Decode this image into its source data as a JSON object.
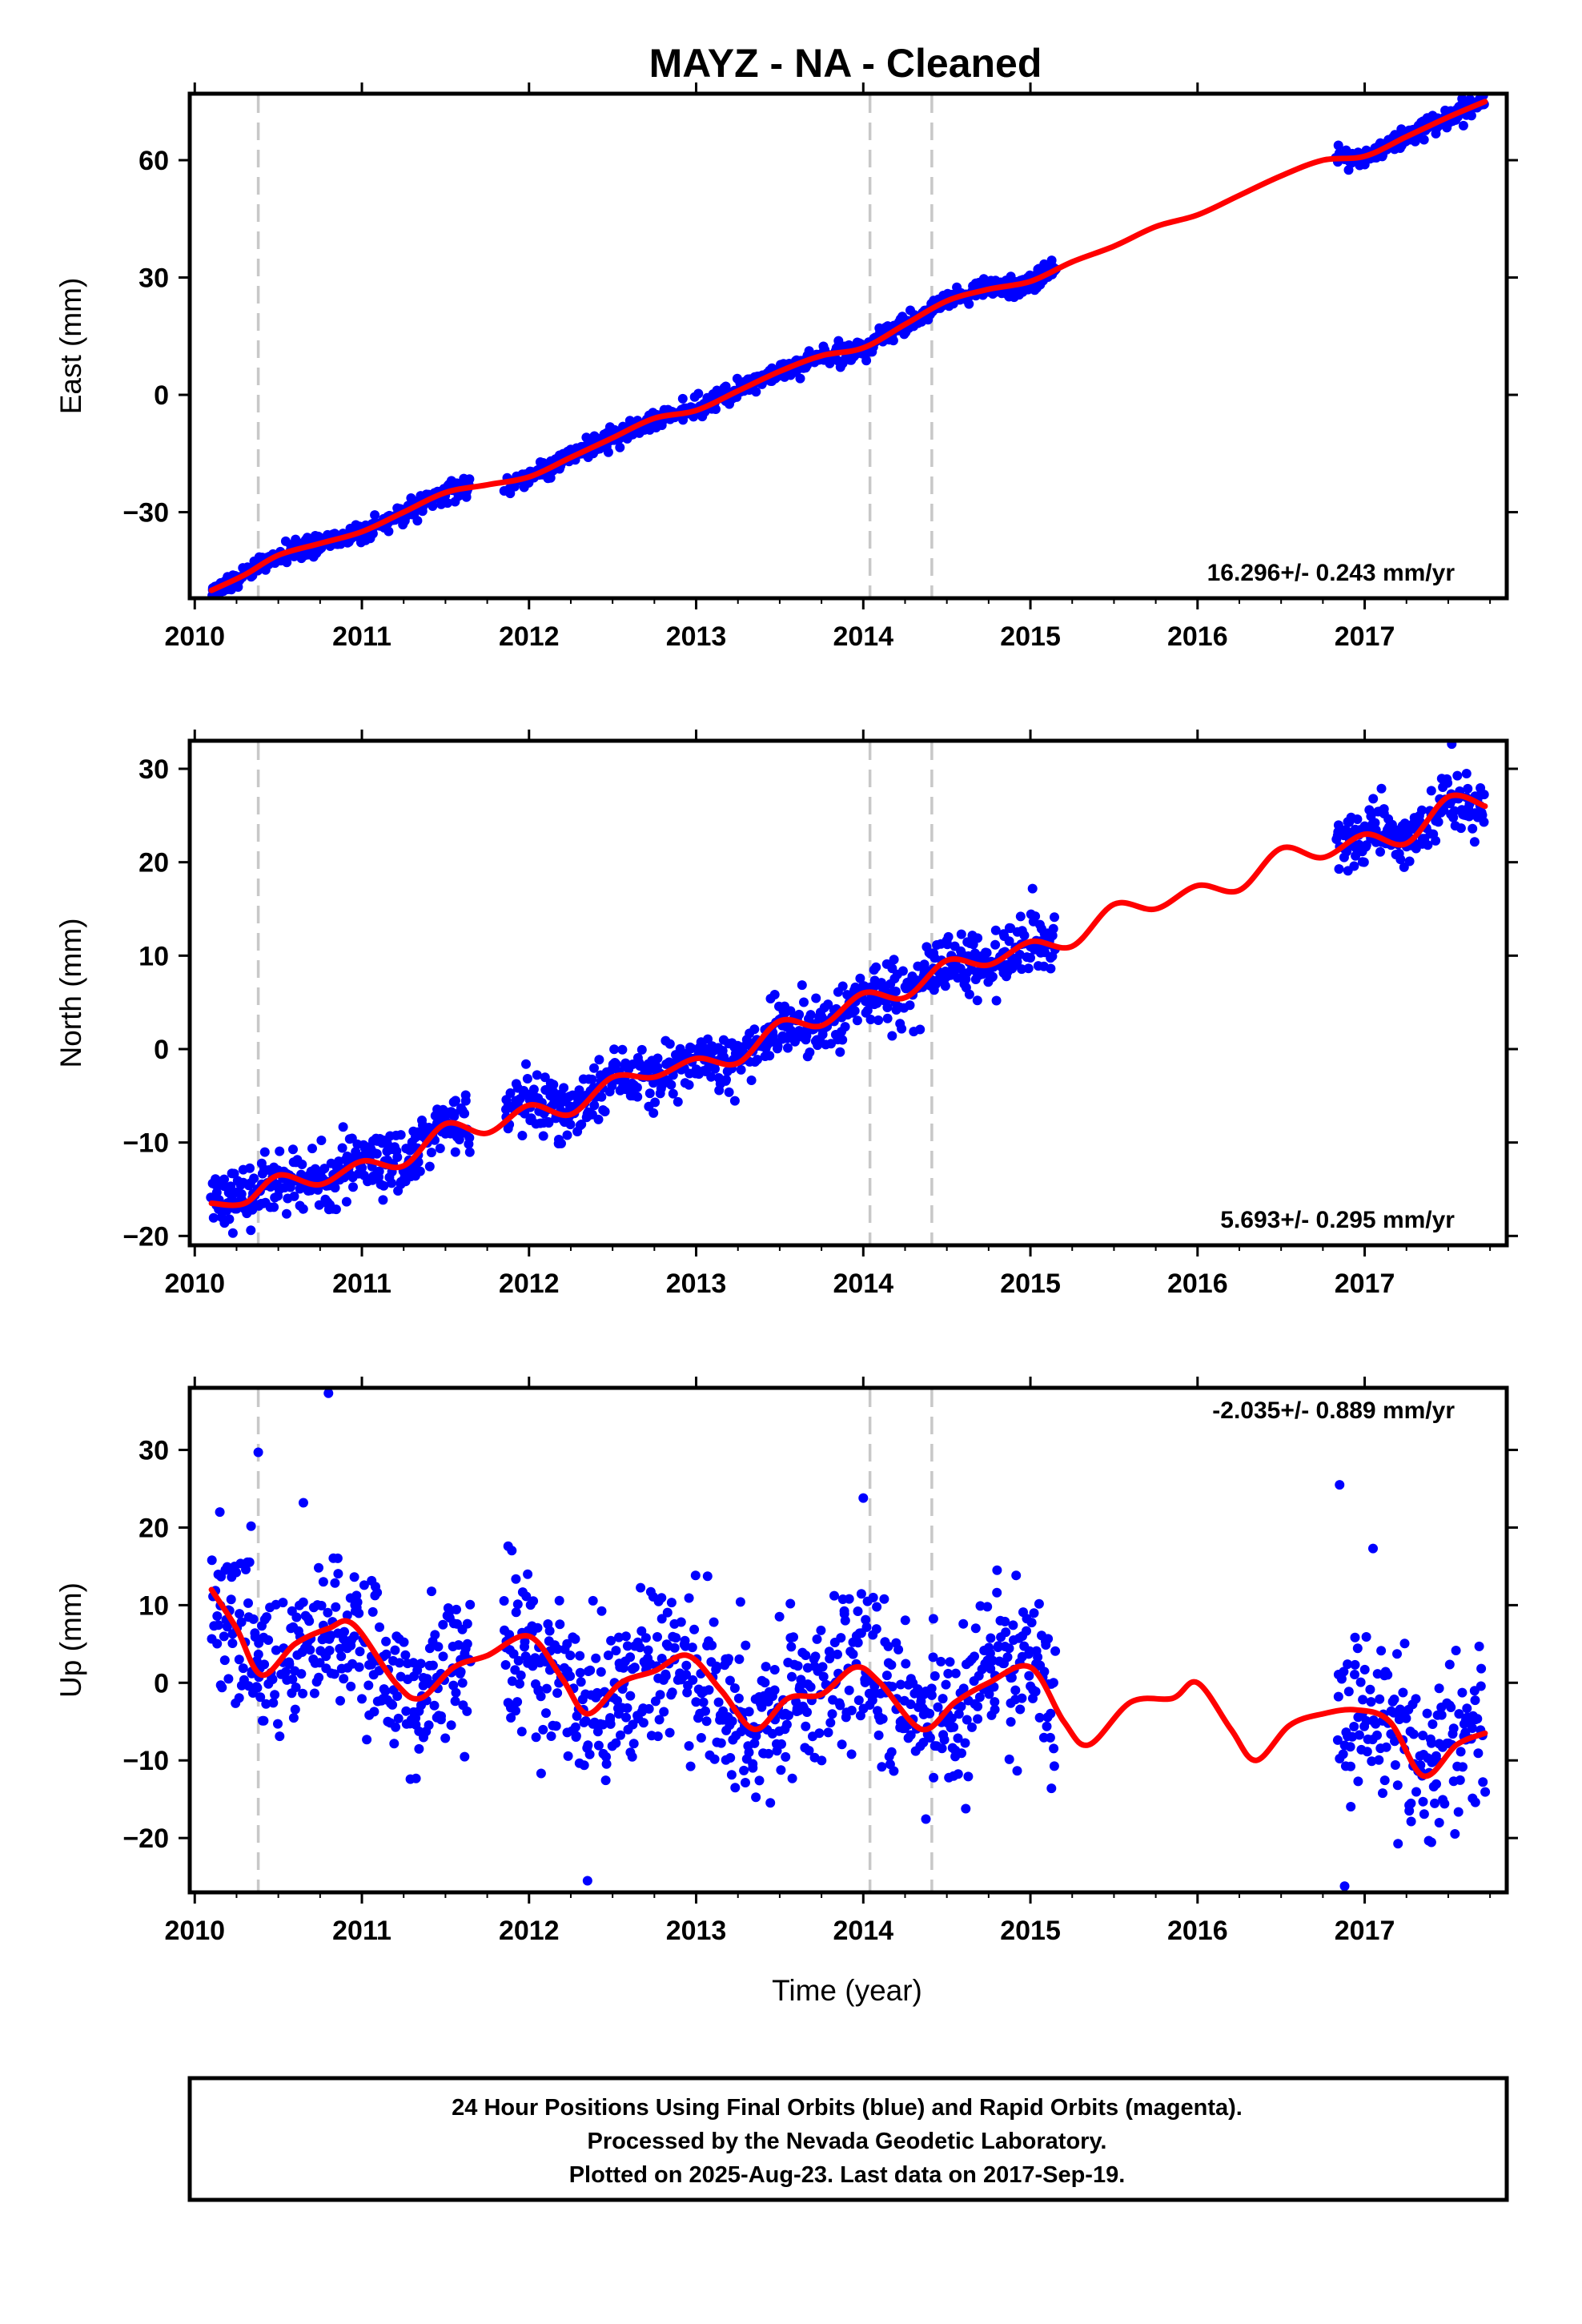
{
  "title": "MAYZ  - NA - Cleaned",
  "x_axis_label": "Time (year)",
  "footer_lines": [
    "24 Hour Positions Using Final Orbits (blue) and Rapid Orbits (magenta).",
    "Processed by the Nevada Geodetic Laboratory.",
    "Plotted on 2025-Aug-23. Last data on 2017-Sep-19."
  ],
  "colors": {
    "points": "#0000ff",
    "fit": "#ff0000",
    "events": "#c8c8c8",
    "frame": "#000000"
  },
  "chart_data": [
    {
      "type": "scatter",
      "panel": "east",
      "ylabel": "East (mm)",
      "rate_label": "16.296+/- 0.243 mm/yr",
      "rate_position": "bottom-right",
      "xlim": [
        2009.97,
        2017.85
      ],
      "ylim": [
        -52,
        77
      ],
      "x_ticks": [
        2010,
        2011,
        2012,
        2013,
        2014,
        2015,
        2016,
        2017
      ],
      "x_tick_labels": [
        "2010",
        "2011",
        "2012",
        "2013",
        "2014",
        "2015",
        "2016",
        "2017"
      ],
      "y_ticks": [
        -30,
        0,
        30,
        60
      ],
      "y_tick_labels": [
        "−30",
        "0",
        "30",
        "60"
      ],
      "event_lines_x": [
        2010.38,
        2014.04,
        2014.41
      ],
      "data_segments": [
        [
          2010.1,
          2011.65
        ],
        [
          2011.85,
          2015.15
        ],
        [
          2016.83,
          2017.72
        ]
      ],
      "trend": {
        "rate": 16.3,
        "intercept": -50.5,
        "t0": 2010.1
      },
      "seasonal": {
        "amplitude": 2.2,
        "phase": 0.0
      },
      "scatter_sigma": 1.3,
      "gaps_sigma": 0.0,
      "fit_series": {
        "name": "",
        "x": [
          2010.1,
          2010.3,
          2010.5,
          2010.75,
          2011.0,
          2011.25,
          2011.5,
          2011.75,
          2012.0,
          2012.25,
          2012.5,
          2012.75,
          2013.0,
          2013.25,
          2013.5,
          2013.75,
          2014.0,
          2014.25,
          2014.5,
          2014.75,
          2015.0,
          2015.25,
          2015.5,
          2015.75,
          2016.0,
          2016.25,
          2016.5,
          2016.75,
          2017.0,
          2017.25,
          2017.5,
          2017.72
        ],
        "y": [
          -50,
          -46,
          -41,
          -38,
          -35,
          -30,
          -25,
          -23,
          -21,
          -16,
          -11,
          -6,
          -4,
          1,
          6,
          10,
          12,
          18,
          24,
          27,
          29,
          34,
          38,
          43,
          46,
          51,
          56,
          60,
          61,
          66,
          71,
          75
        ]
      }
    },
    {
      "type": "scatter",
      "panel": "north",
      "ylabel": "North (mm)",
      "rate_label": "5.693+/- 0.295 mm/yr",
      "rate_position": "bottom-right",
      "xlim": [
        2009.97,
        2017.85
      ],
      "ylim": [
        -21,
        33
      ],
      "x_ticks": [
        2010,
        2011,
        2012,
        2013,
        2014,
        2015,
        2016,
        2017
      ],
      "x_tick_labels": [
        "2010",
        "2011",
        "2012",
        "2013",
        "2014",
        "2015",
        "2016",
        "2017"
      ],
      "y_ticks": [
        -20,
        -10,
        0,
        10,
        20,
        30
      ],
      "y_tick_labels": [
        "−20",
        "−10",
        "0",
        "10",
        "20",
        "30"
      ],
      "event_lines_x": [
        2010.38,
        2014.04,
        2014.41
      ],
      "data_segments": [
        [
          2010.1,
          2011.65
        ],
        [
          2011.85,
          2015.15
        ],
        [
          2016.83,
          2017.72
        ]
      ],
      "trend": {
        "rate": 5.7,
        "intercept": -17.0,
        "t0": 2010.1
      },
      "seasonal": {
        "amplitude": 1.4,
        "phase": 1.2
      },
      "scatter_sigma": 1.6,
      "fit_series": {
        "name": "",
        "x": [
          2010.1,
          2010.3,
          2010.5,
          2010.75,
          2011.0,
          2011.25,
          2011.5,
          2011.75,
          2012.0,
          2012.25,
          2012.5,
          2012.75,
          2013.0,
          2013.25,
          2013.5,
          2013.75,
          2014.0,
          2014.25,
          2014.5,
          2014.75,
          2015.0,
          2015.25,
          2015.5,
          2015.75,
          2016.0,
          2016.25,
          2016.5,
          2016.75,
          2017.0,
          2017.25,
          2017.5,
          2017.72
        ],
        "y": [
          -16.5,
          -16.5,
          -13.5,
          -14.5,
          -12,
          -12.5,
          -8,
          -9,
          -6,
          -7,
          -3,
          -3,
          -1,
          -1.5,
          3,
          2.5,
          6,
          5.5,
          9.5,
          9,
          11.5,
          11,
          15.5,
          15,
          17.5,
          17,
          21.5,
          20.5,
          23,
          22,
          27,
          26
        ]
      }
    },
    {
      "type": "scatter",
      "panel": "up",
      "ylabel": "Up (mm)",
      "rate_label": "-2.035+/- 0.889 mm/yr",
      "rate_position": "top-right",
      "xlim": [
        2009.97,
        2017.85
      ],
      "ylim": [
        -27,
        38
      ],
      "x_ticks": [
        2010,
        2011,
        2012,
        2013,
        2014,
        2015,
        2016,
        2017
      ],
      "x_tick_labels": [
        "2010",
        "2011",
        "2012",
        "2013",
        "2014",
        "2015",
        "2016",
        "2017"
      ],
      "y_ticks": [
        -20,
        -10,
        0,
        10,
        20,
        30
      ],
      "y_tick_labels": [
        "−20",
        "−10",
        "0",
        "10",
        "20",
        "30"
      ],
      "event_lines_x": [
        2010.38,
        2014.04,
        2014.41
      ],
      "data_segments": [
        [
          2010.1,
          2011.65
        ],
        [
          2011.85,
          2015.15
        ],
        [
          2016.83,
          2017.72
        ]
      ],
      "trend": {
        "rate": -2.0,
        "intercept": 4.0,
        "t0": 2010.1
      },
      "seasonal": {
        "amplitude": 4.5,
        "phase": -1.0
      },
      "scatter_sigma": 5.0,
      "outliers": [
        [
          2010.15,
          22
        ],
        [
          2010.38,
          29.7
        ],
        [
          2010.65,
          23.2
        ],
        [
          2010.8,
          37.3
        ],
        [
          2012.35,
          -25.5
        ],
        [
          2014.0,
          23.8
        ],
        [
          2016.85,
          25.5
        ],
        [
          2016.88,
          -26.2
        ],
        [
          2017.05,
          17.3
        ]
      ],
      "fit_series": {
        "name": "",
        "x": [
          2010.1,
          2010.25,
          2010.4,
          2010.6,
          2010.8,
          2010.95,
          2011.2,
          2011.35,
          2011.55,
          2011.75,
          2012.0,
          2012.2,
          2012.35,
          2012.55,
          2012.75,
          2012.95,
          2013.15,
          2013.35,
          2013.55,
          2013.75,
          2013.95,
          2014.1,
          2014.35,
          2014.55,
          2014.75,
          2015.0,
          2015.2,
          2015.35,
          2015.6,
          2015.85,
          2016.0,
          2016.2,
          2016.35,
          2016.55,
          2016.75,
          2016.95,
          2017.15,
          2017.35,
          2017.55,
          2017.72
        ],
        "y": [
          12,
          7,
          1,
          5,
          7,
          7.5,
          0,
          -2,
          2,
          3.5,
          6,
          0.5,
          -4,
          0,
          1.5,
          3.5,
          -1,
          -6,
          -2,
          -1.5,
          2,
          0,
          -6,
          -2.5,
          0,
          2,
          -5,
          -8,
          -2.5,
          -2,
          0,
          -6,
          -10,
          -5.5,
          -4,
          -3.5,
          -5,
          -12,
          -8,
          -6.5
        ]
      }
    }
  ]
}
